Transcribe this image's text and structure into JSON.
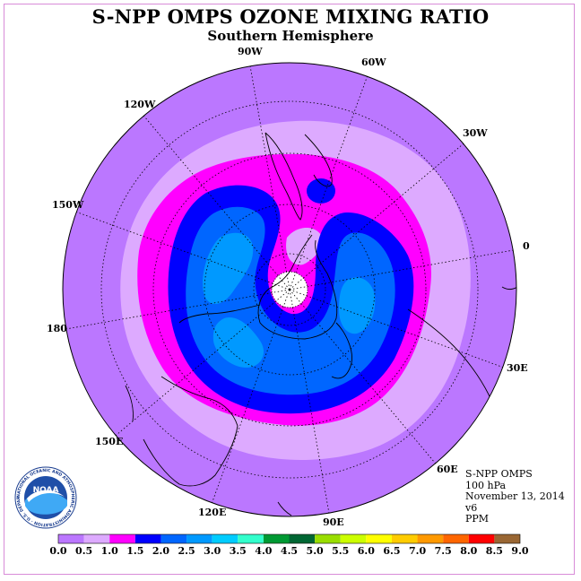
{
  "header": {
    "title": "S-NPP OMPS OZONE MIXING RATIO",
    "subtitle": "Southern Hemisphere"
  },
  "longitude_labels": [
    "90W",
    "60W",
    "30W",
    "0",
    "30E",
    "60E",
    "90E",
    "120E",
    "150E",
    "180",
    "150W",
    "120W"
  ],
  "info": {
    "instrument": "S-NPP OMPS",
    "level": "100 hPa",
    "date": "November 13, 2014",
    "version": "v6",
    "units": "PPM"
  },
  "logo": {
    "text": "NOAA",
    "ring_text": "NATIONAL OCEANIC AND ATMOSPHERIC ADMINISTRATION · U.S. DEPARTMENT OF COMMERCE"
  },
  "colorbar": {
    "labels": [
      "0.0",
      "0.5",
      "1.0",
      "1.5",
      "2.0",
      "2.5",
      "3.0",
      "3.5",
      "4.0",
      "4.5",
      "5.0",
      "5.5",
      "6.0",
      "6.5",
      "7.0",
      "7.5",
      "8.0",
      "8.5",
      "9.0"
    ],
    "colors": [
      "#bb77ff",
      "#ddaaff",
      "#ff00ff",
      "#0000ff",
      "#0066ff",
      "#0099ff",
      "#00ccff",
      "#33ffcc",
      "#009933",
      "#006633",
      "#99dd00",
      "#ccff00",
      "#ffff00",
      "#ffcc00",
      "#ff9900",
      "#ff6600",
      "#ff0000",
      "#996633"
    ]
  },
  "colors": {
    "ocean_bg": "#bb77ff",
    "band_0_5": "#ddaaff",
    "band_1_0": "#ff00ff",
    "band_1_5": "#0000ff",
    "band_2_0": "#0066ff",
    "band_2_5": "#0099ff",
    "pole": "#ffffff",
    "frame": "#d88bd8"
  }
}
